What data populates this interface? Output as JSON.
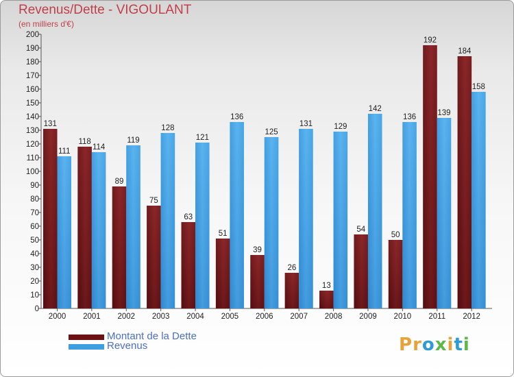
{
  "header": {
    "title": "Revenus/Dette - VIGOULANT",
    "subtitle": "(en milliers d'€)"
  },
  "legend": {
    "debt_label": "Montant de la Dette",
    "revenue_label": "Revenus"
  },
  "logo": {
    "text": "Proxiti",
    "colors": [
      "#e8a23a",
      "#e8a23a",
      "#2f9bd6",
      "#5cb848",
      "#e8a23a",
      "#2f9bd6",
      "#5cb848"
    ]
  },
  "colors": {
    "debt": "#7a1c1e",
    "revenue": "#3d9ee0",
    "title": "#c0404a",
    "legend_text": "#4a6ed0"
  },
  "chart_data": {
    "type": "bar",
    "title": "Revenus/Dette - VIGOULANT",
    "ylabel": "(en milliers d'€)",
    "xlabel": "",
    "ylim": [
      0,
      200
    ],
    "ytick_step": 10,
    "grid": false,
    "legend_position": "bottom-left",
    "categories": [
      "2000",
      "2001",
      "2002",
      "2003",
      "2004",
      "2005",
      "2006",
      "2007",
      "2008",
      "2009",
      "2010",
      "2011",
      "2012"
    ],
    "series": [
      {
        "name": "Montant de la Dette",
        "values": [
          131,
          118,
          89,
          75,
          63,
          51,
          39,
          26,
          13,
          54,
          50,
          192,
          184
        ]
      },
      {
        "name": "Revenus",
        "values": [
          111,
          114,
          119,
          128,
          121,
          136,
          125,
          131,
          129,
          142,
          136,
          139,
          158
        ]
      }
    ]
  }
}
